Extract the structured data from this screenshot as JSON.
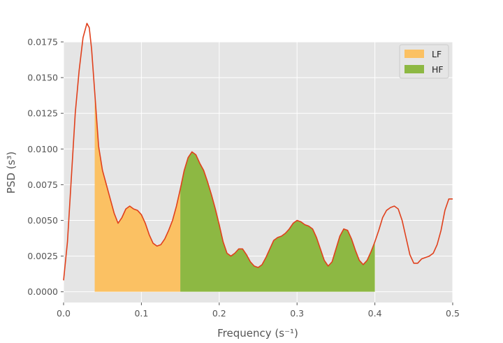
{
  "chart_data": {
    "type": "area",
    "xlabel": "Frequency (s⁻¹)",
    "ylabel": "PSD (s³)",
    "xlim": [
      0.0,
      0.5
    ],
    "ylim": [
      -0.00075,
      0.0175
    ],
    "x_ticks": [
      "0.0",
      "0.1",
      "0.2",
      "0.3",
      "0.4",
      "0.5"
    ],
    "y_ticks": [
      "0.0000",
      "0.0025",
      "0.0050",
      "0.0075",
      "0.0100",
      "0.0125",
      "0.0150",
      "0.0175"
    ],
    "grid": true,
    "legend_position": "upper right",
    "bands": [
      {
        "name": "LF",
        "range": [
          0.04,
          0.15
        ],
        "color": "#fbc163"
      },
      {
        "name": "HF",
        "range": [
          0.15,
          0.4
        ],
        "color": "#8db843"
      }
    ],
    "line_color": "#e0401c",
    "series": [
      {
        "x": [
          0.0,
          0.005,
          0.01,
          0.015,
          0.02,
          0.025,
          0.03,
          0.033,
          0.036,
          0.04,
          0.045,
          0.05,
          0.055,
          0.06,
          0.065,
          0.07,
          0.075,
          0.08,
          0.085,
          0.09,
          0.095,
          0.1,
          0.105,
          0.11,
          0.115,
          0.12,
          0.125,
          0.13,
          0.135,
          0.14,
          0.145,
          0.15,
          0.155,
          0.16,
          0.165,
          0.17,
          0.175,
          0.18,
          0.185,
          0.19,
          0.195,
          0.2,
          0.205,
          0.21,
          0.215,
          0.22,
          0.225,
          0.23,
          0.235,
          0.24,
          0.245,
          0.25,
          0.255,
          0.26,
          0.265,
          0.27,
          0.275,
          0.28,
          0.285,
          0.29,
          0.295,
          0.3,
          0.305,
          0.31,
          0.315,
          0.32,
          0.325,
          0.33,
          0.335,
          0.34,
          0.345,
          0.35,
          0.355,
          0.36,
          0.365,
          0.37,
          0.375,
          0.38,
          0.385,
          0.39,
          0.395,
          0.4,
          0.405,
          0.41,
          0.415,
          0.42,
          0.425,
          0.43,
          0.435,
          0.44,
          0.445,
          0.45,
          0.455,
          0.46,
          0.465,
          0.47,
          0.475,
          0.48,
          0.485,
          0.49,
          0.495,
          0.5
        ],
        "y": [
          0.0008,
          0.0035,
          0.008,
          0.0125,
          0.0155,
          0.0178,
          0.0188,
          0.0185,
          0.017,
          0.014,
          0.0102,
          0.0085,
          0.0075,
          0.0065,
          0.0055,
          0.0048,
          0.0052,
          0.0058,
          0.006,
          0.0058,
          0.0057,
          0.0054,
          0.0048,
          0.004,
          0.0034,
          0.0032,
          0.0033,
          0.0037,
          0.0043,
          0.005,
          0.006,
          0.0072,
          0.0085,
          0.0094,
          0.0098,
          0.0096,
          0.009,
          0.0085,
          0.0077,
          0.0068,
          0.0058,
          0.0047,
          0.0035,
          0.0027,
          0.0025,
          0.0027,
          0.003,
          0.003,
          0.0026,
          0.0021,
          0.0018,
          0.0017,
          0.0019,
          0.0024,
          0.003,
          0.0036,
          0.0038,
          0.0039,
          0.0041,
          0.0044,
          0.0048,
          0.005,
          0.0049,
          0.0047,
          0.0046,
          0.0044,
          0.0038,
          0.003,
          0.0022,
          0.0018,
          0.0021,
          0.003,
          0.0039,
          0.0044,
          0.0043,
          0.0037,
          0.0029,
          0.0022,
          0.0019,
          0.0022,
          0.0028,
          0.0035,
          0.0043,
          0.0052,
          0.0057,
          0.0059,
          0.006,
          0.0058,
          0.005,
          0.0038,
          0.0026,
          0.002,
          0.002,
          0.0023,
          0.0024,
          0.0025,
          0.0027,
          0.0033,
          0.0043,
          0.0057,
          0.0065,
          0.0065
        ]
      }
    ]
  }
}
